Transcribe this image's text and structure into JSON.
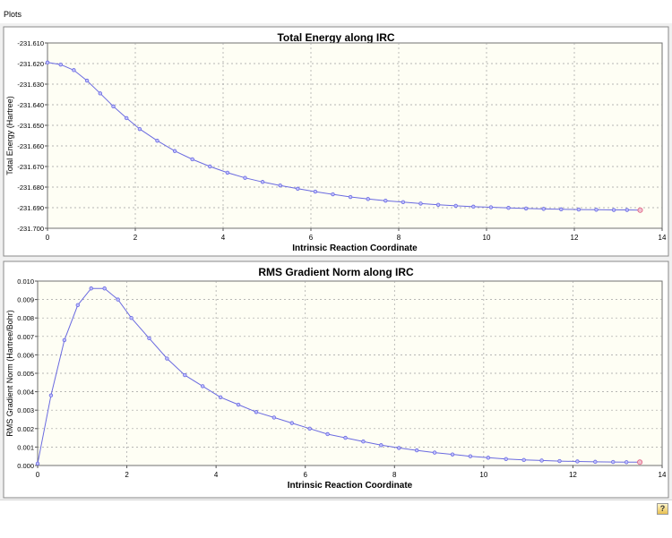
{
  "window": {
    "title": "Plots"
  },
  "help": {
    "glyph": "?"
  },
  "colors": {
    "line": "#6a6ae0",
    "marker_fill": "#c0c0ff",
    "last_marker": "#e06080",
    "grid": "#a0a0a0",
    "plot_bg": "#fefef4"
  },
  "chart_data": [
    {
      "type": "line",
      "title": "Total Energy along IRC",
      "xlabel": "Intrinsic Reaction Coordinate",
      "ylabel": "Total Energy (Hartree)",
      "xlim": [
        0,
        14
      ],
      "ylim": [
        -231.7,
        -231.61
      ],
      "xticks": [
        "0",
        "2",
        "4",
        "6",
        "8",
        "10",
        "12",
        "14"
      ],
      "yticks": [
        "-231.700",
        "-231.690",
        "-231.680",
        "-231.670",
        "-231.660",
        "-231.650",
        "-231.640",
        "-231.630",
        "-231.620",
        "-231.610"
      ],
      "grid": true,
      "x": [
        0,
        0.3,
        0.6,
        0.9,
        1.2,
        1.5,
        1.8,
        2.1,
        2.5,
        2.9,
        3.3,
        3.7,
        4.1,
        4.5,
        4.9,
        5.3,
        5.7,
        6.1,
        6.5,
        6.9,
        7.3,
        7.7,
        8.1,
        8.5,
        8.9,
        9.3,
        9.7,
        10.1,
        10.5,
        10.9,
        11.3,
        11.7,
        12.1,
        12.5,
        12.9,
        13.2,
        13.5
      ],
      "y": [
        -231.6195,
        -231.6205,
        -231.6232,
        -231.6283,
        -231.6345,
        -231.6408,
        -231.6465,
        -231.6518,
        -231.6575,
        -231.6625,
        -231.6665,
        -231.67,
        -231.673,
        -231.6755,
        -231.6775,
        -231.6792,
        -231.6808,
        -231.6822,
        -231.6835,
        -231.6848,
        -231.6858,
        -231.6866,
        -231.6873,
        -231.688,
        -231.6886,
        -231.6891,
        -231.6895,
        -231.6898,
        -231.6901,
        -231.6904,
        -231.6906,
        -231.6908,
        -231.6909,
        -231.691,
        -231.6911,
        -231.6911,
        -231.6912
      ]
    },
    {
      "type": "line",
      "title": "RMS Gradient Norm along IRC",
      "xlabel": "Intrinsic Reaction Coordinate",
      "ylabel": "RMS Gradient Norm (Hartree/Bohr)",
      "xlim": [
        0,
        14
      ],
      "ylim": [
        0,
        0.01
      ],
      "xticks": [
        "0",
        "2",
        "4",
        "6",
        "8",
        "10",
        "12",
        "14"
      ],
      "yticks": [
        "0.000",
        "0.001",
        "0.002",
        "0.003",
        "0.004",
        "0.005",
        "0.006",
        "0.007",
        "0.008",
        "0.009",
        "0.010"
      ],
      "grid": true,
      "x": [
        0,
        0.3,
        0.6,
        0.9,
        1.2,
        1.5,
        1.8,
        2.1,
        2.5,
        2.9,
        3.3,
        3.7,
        4.1,
        4.5,
        4.9,
        5.3,
        5.7,
        6.1,
        6.5,
        6.9,
        7.3,
        7.7,
        8.1,
        8.5,
        8.9,
        9.3,
        9.7,
        10.1,
        10.5,
        10.9,
        11.3,
        11.7,
        12.1,
        12.5,
        12.9,
        13.2,
        13.5
      ],
      "y": [
        0.0001,
        0.0038,
        0.0068,
        0.0087,
        0.0096,
        0.0096,
        0.009,
        0.008,
        0.0069,
        0.0058,
        0.0049,
        0.0043,
        0.0037,
        0.0033,
        0.0029,
        0.0026,
        0.0023,
        0.002,
        0.0017,
        0.0015,
        0.0013,
        0.0011,
        0.00095,
        0.00082,
        0.0007,
        0.0006,
        0.0005,
        0.00042,
        0.00035,
        0.0003,
        0.00027,
        0.00024,
        0.00022,
        0.0002,
        0.00019,
        0.00018,
        0.00018
      ]
    }
  ]
}
